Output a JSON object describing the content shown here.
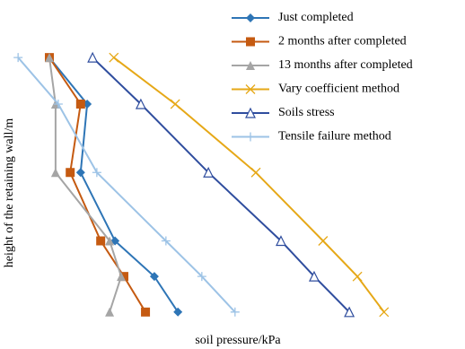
{
  "chart_data": {
    "type": "line",
    "x_label": "soil pressure/kPa",
    "y_label": "height of the retaining wall/m",
    "xlim": [
      0,
      100
    ],
    "ylim": [
      0,
      10
    ],
    "series": [
      {
        "name": "Just completed",
        "color": "#2e75b6",
        "marker": "diamond",
        "x": [
          9.3,
          19.1,
          17.4,
          26.3,
          36.5,
          42.6
        ],
        "values": [
          9.7,
          8.0,
          5.5,
          3.0,
          1.7,
          0.4
        ]
      },
      {
        "name": "2 months after completed",
        "color": "#c55a11",
        "marker": "square",
        "x": [
          9.3,
          17.4,
          14.7,
          22.6,
          28.6,
          34.2
        ],
        "values": [
          9.7,
          8.0,
          5.5,
          3.0,
          1.7,
          0.4
        ]
      },
      {
        "name": "13 months after completed",
        "color": "#a5a5a5",
        "marker": "triangle",
        "x": [
          9.3,
          10.9,
          10.9,
          24.9,
          27.9,
          24.9
        ],
        "values": [
          9.7,
          8.0,
          5.5,
          3.0,
          1.7,
          0.4
        ]
      },
      {
        "name": "Vary coefficient method",
        "color": "#e6a817",
        "marker": "cross",
        "x": [
          26.0,
          41.9,
          62.8,
          80.2,
          89.1,
          96.0
        ],
        "values": [
          9.7,
          8.0,
          5.5,
          3.0,
          1.7,
          0.4
        ]
      },
      {
        "name": "Soils stress",
        "color": "#2f4d9e",
        "marker": "open-triangle",
        "x": [
          20.5,
          33.0,
          50.5,
          69.3,
          77.9,
          87.0
        ],
        "values": [
          9.7,
          8.0,
          5.5,
          3.0,
          1.7,
          0.4
        ]
      },
      {
        "name": "Tensile failure method",
        "color": "#9dc3e6",
        "marker": "plus",
        "x": [
          1.2,
          11.6,
          21.6,
          39.5,
          48.8,
          57.4
        ],
        "values": [
          9.7,
          8.0,
          5.5,
          3.0,
          1.7,
          0.4
        ]
      }
    ]
  }
}
